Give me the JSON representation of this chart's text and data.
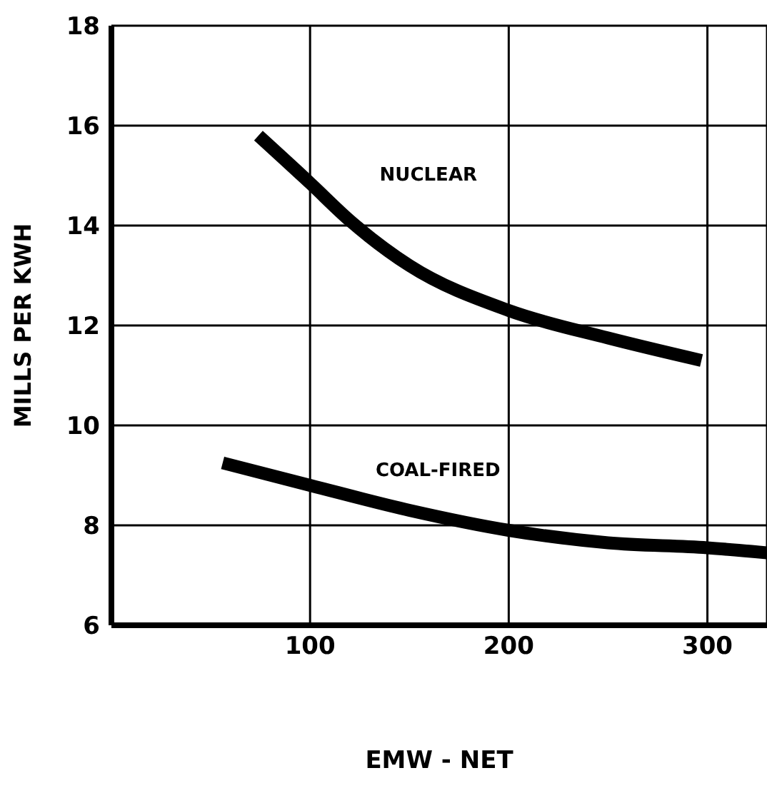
{
  "chart_data": {
    "type": "line",
    "xlabel": "EMW - NET",
    "ylabel": "MILLS PER KWH",
    "xlim": [
      0,
      330
    ],
    "xticks": [
      100,
      200,
      300
    ],
    "ylim": [
      6,
      18
    ],
    "yticks": [
      6,
      8,
      10,
      12,
      14,
      16,
      18
    ],
    "grid": true,
    "marker": "none",
    "line_style": "solid",
    "series": [
      {
        "name": "NUCLEAR",
        "color": "#000000",
        "x": [
          74,
          100,
          120,
          150,
          200,
          250,
          297
        ],
        "values": [
          15.8,
          14.85,
          14.1,
          13.2,
          12.3,
          11.75,
          11.3
        ]
      },
      {
        "name": "COAL-FIRED",
        "color": "#000000",
        "x": [
          56,
          100,
          150,
          200,
          250,
          300,
          330
        ],
        "values": [
          9.25,
          8.8,
          8.3,
          7.9,
          7.65,
          7.55,
          7.45
        ]
      }
    ]
  }
}
